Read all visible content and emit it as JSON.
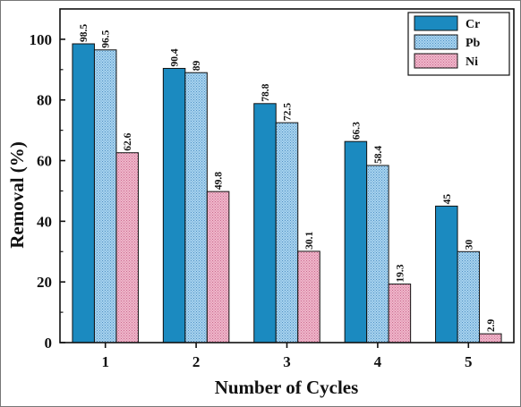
{
  "chart_data": {
    "type": "bar",
    "title": "",
    "xlabel": "Number of Cycles",
    "ylabel": "Removal (%)",
    "categories": [
      "1",
      "2",
      "3",
      "4",
      "5"
    ],
    "ylim": [
      0,
      110
    ],
    "yticks": [
      0,
      20,
      40,
      60,
      80,
      100
    ],
    "grid": false,
    "legend_position": "top-right",
    "series": [
      {
        "name": "Cr",
        "values": [
          98.5,
          90.4,
          78.8,
          66.3,
          45
        ],
        "labels": [
          "98.5",
          "90.4",
          "78.8",
          "66.3",
          "45"
        ],
        "color": "#1b8ac0",
        "pattern": "solid"
      },
      {
        "name": "Pb",
        "values": [
          96.5,
          89,
          72.5,
          58.4,
          30
        ],
        "labels": [
          "96.5",
          "89",
          "72.5",
          "58.4",
          "30"
        ],
        "color": "#8fc6ea",
        "pattern": "dots"
      },
      {
        "name": "Ni",
        "values": [
          62.6,
          49.8,
          30.1,
          19.3,
          2.9
        ],
        "labels": [
          "62.6",
          "49.8",
          "30.1",
          "19.3",
          "2.9"
        ],
        "color": "#e7a3bd",
        "pattern": "dots"
      }
    ]
  }
}
